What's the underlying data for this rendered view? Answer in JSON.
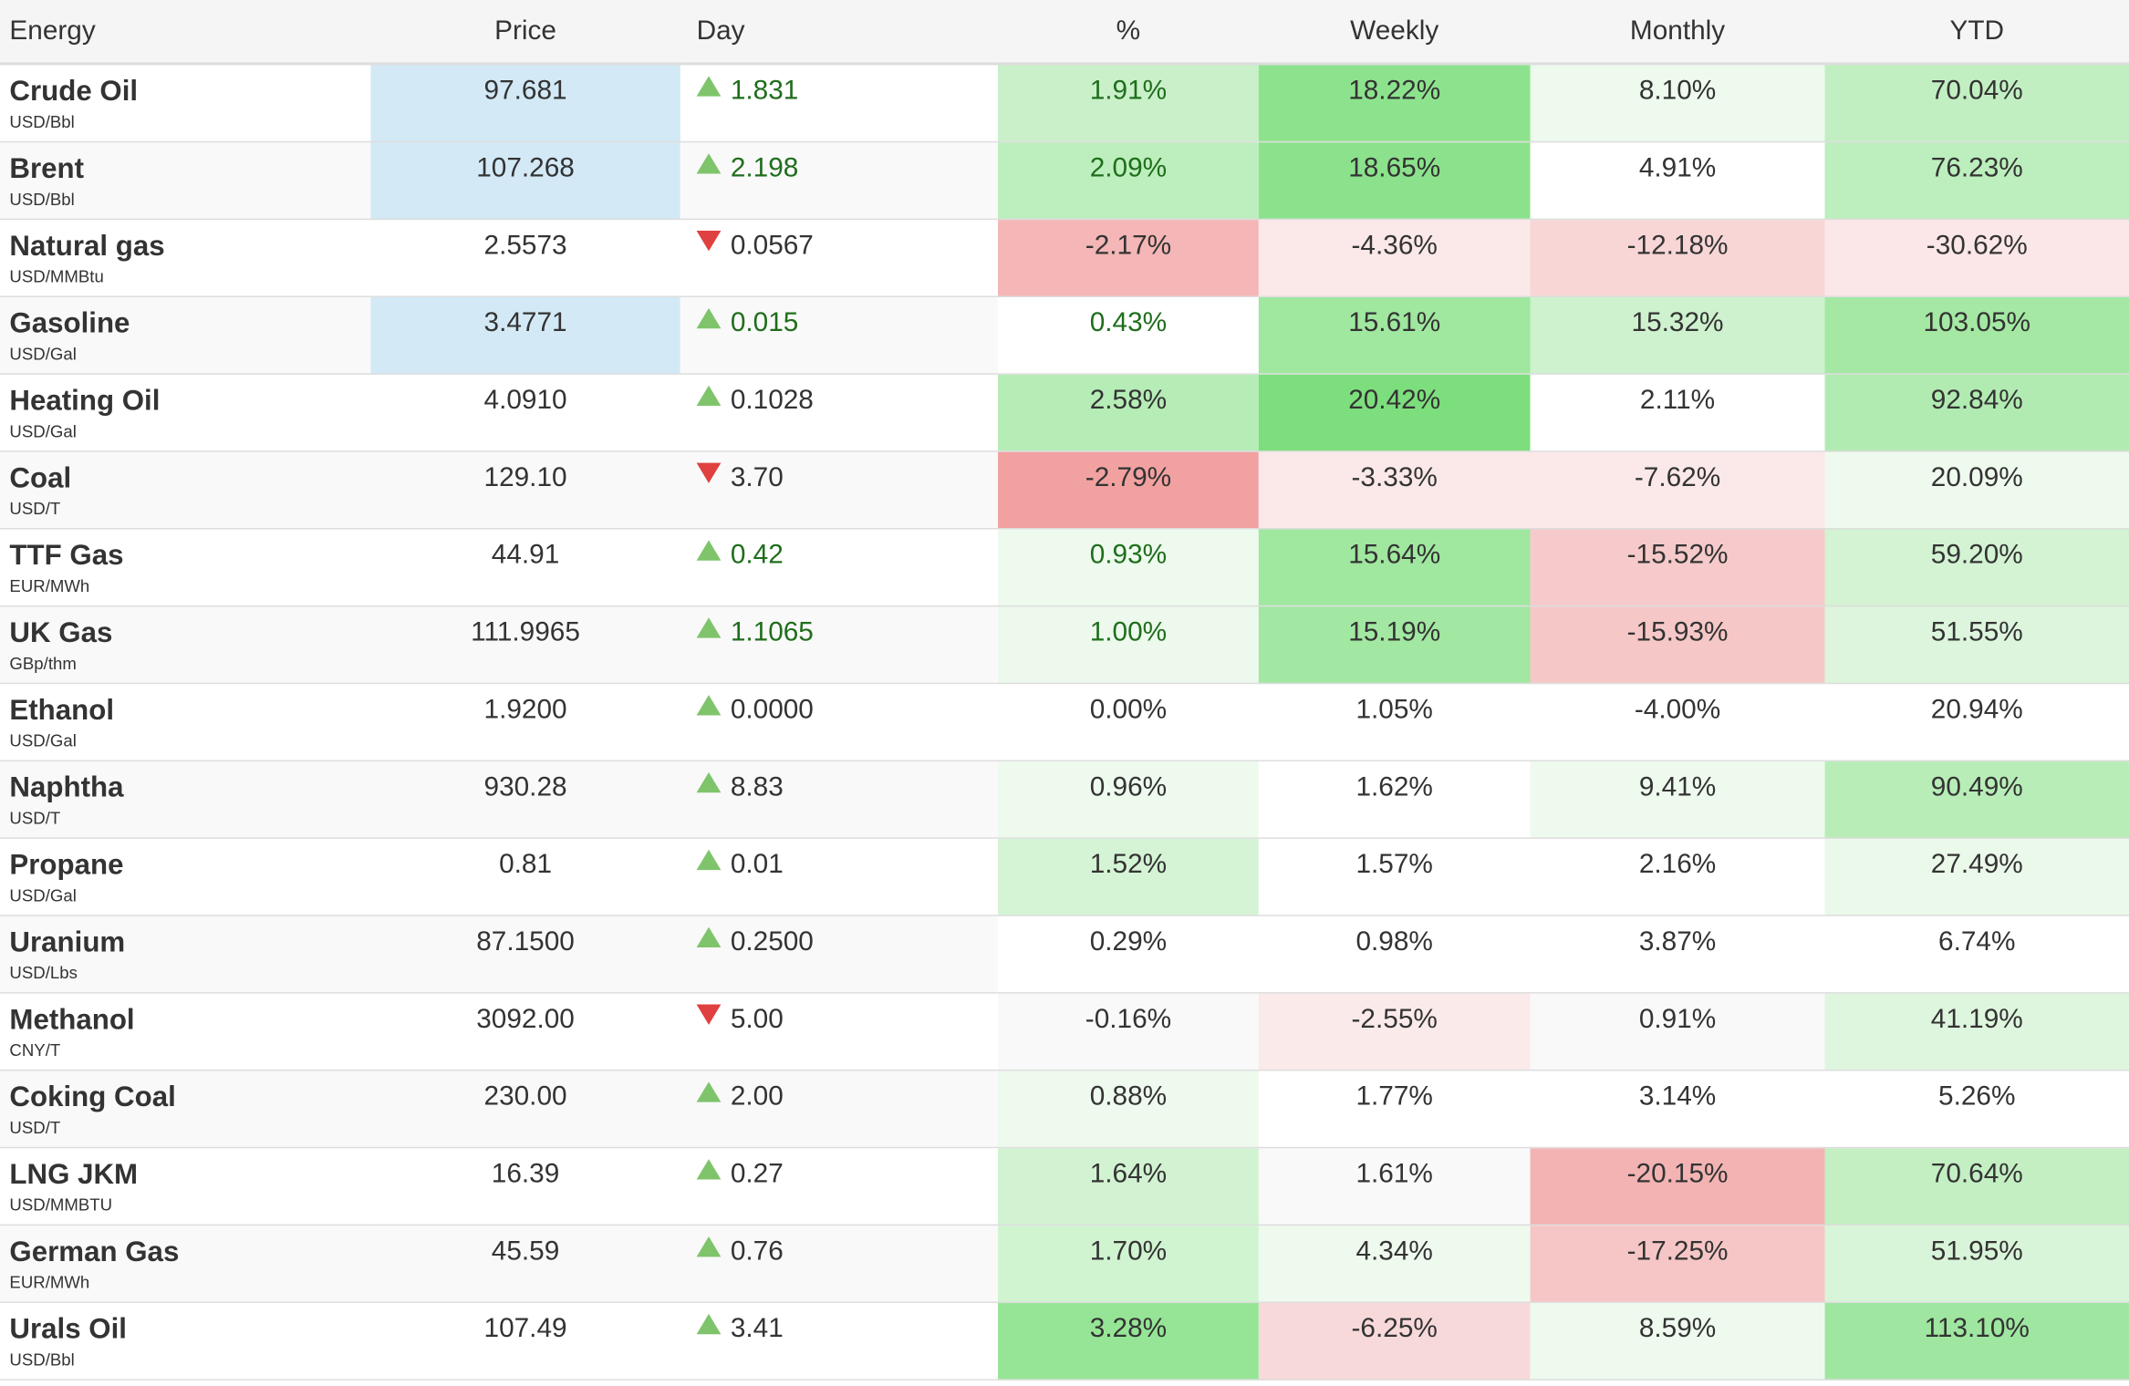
{
  "header": [
    "Energy",
    "Price",
    "Day",
    "%",
    "Weekly",
    "Monthly",
    "YTD"
  ],
  "colors": {
    "highlight": "#d3e9f6",
    "up_arrow": "#7fc46b",
    "down_arrow": "#e0403f",
    "positive_text": "#1f6e1c"
  },
  "rows": [
    {
      "name": "Crude Oil",
      "unit": "USD/Bbl",
      "price": "97.681",
      "day": "1.831",
      "dir": "up",
      "pct": "1.91%",
      "weekly": "18.22%",
      "monthly": "8.10%",
      "ytd": "70.04%",
      "highlight": true,
      "pct_color": "pos",
      "bg": [
        "#c9f0c9",
        "#8de38d",
        "#edfaed",
        "#c2efc2"
      ]
    },
    {
      "name": "Brent",
      "unit": "USD/Bbl",
      "price": "107.268",
      "day": "2.198",
      "dir": "up",
      "pct": "2.09%",
      "weekly": "18.65%",
      "monthly": "4.91%",
      "ytd": "76.23%",
      "highlight": true,
      "pct_color": "pos",
      "bg": [
        "#bdeebd",
        "#8ce28c",
        "#ffffff",
        "#bdeebd"
      ]
    },
    {
      "name": "Natural gas",
      "unit": "USD/MMBtu",
      "price": "2.5573",
      "day": "0.0567",
      "dir": "down",
      "pct": "-2.17%",
      "weekly": "-4.36%",
      "monthly": "-12.18%",
      "ytd": "-30.62%",
      "highlight": false,
      "pct_color": "neg",
      "bg": [
        "#f4b6b6",
        "#fbe8e8",
        "#f8d6d6",
        "#fbe7e7"
      ]
    },
    {
      "name": "Gasoline",
      "unit": "USD/Gal",
      "price": "3.4771",
      "day": "0.015",
      "dir": "up",
      "pct": "0.43%",
      "weekly": "15.61%",
      "monthly": "15.32%",
      "ytd": "103.05%",
      "highlight": true,
      "pct_color": "pos",
      "bg": [
        "#ffffff",
        "#a0e7a0",
        "#cef1ce",
        "#a4e8a4"
      ]
    },
    {
      "name": "Heating Oil",
      "unit": "USD/Gal",
      "price": "4.0910",
      "day": "0.1028",
      "dir": "up",
      "pct": "2.58%",
      "weekly": "20.42%",
      "monthly": "2.11%",
      "ytd": "92.84%",
      "highlight": false,
      "pct_color": "neu",
      "bg": [
        "#b6ecb6",
        "#7dde7d",
        "#ffffff",
        "#b1ebb1"
      ]
    },
    {
      "name": "Coal",
      "unit": "USD/T",
      "price": "129.10",
      "day": "3.70",
      "dir": "down",
      "pct": "-2.79%",
      "weekly": "-3.33%",
      "monthly": "-7.62%",
      "ytd": "20.09%",
      "highlight": false,
      "pct_color": "neg",
      "bg": [
        "#f2a1a1",
        "#fbe9e9",
        "#fbe8e8",
        "#eefaee"
      ]
    },
    {
      "name": "TTF Gas",
      "unit": "EUR/MWh",
      "price": "44.91",
      "day": "0.42",
      "dir": "up",
      "pct": "0.93%",
      "weekly": "15.64%",
      "monthly": "-15.52%",
      "ytd": "59.20%",
      "highlight": false,
      "pct_color": "pos",
      "bg": [
        "#eefaee",
        "#a0e7a0",
        "#f6caca",
        "#d3f3d3"
      ]
    },
    {
      "name": "UK Gas",
      "unit": "GBp/thm",
      "price": "111.9965",
      "day": "1.1065",
      "dir": "up",
      "pct": "1.00%",
      "weekly": "15.19%",
      "monthly": "-15.93%",
      "ytd": "51.55%",
      "highlight": false,
      "pct_color": "pos",
      "bg": [
        "#ecf9ec",
        "#a2e7a2",
        "#f6c7c7",
        "#dcf5dc"
      ]
    },
    {
      "name": "Ethanol",
      "unit": "USD/Gal",
      "price": "1.9200",
      "day": "0.0000",
      "dir": "up",
      "pct": "0.00%",
      "weekly": "1.05%",
      "monthly": "-4.00%",
      "ytd": "20.94%",
      "highlight": false,
      "pct_color": "neu",
      "bg": [
        "#ffffff",
        "#ffffff",
        "#ffffff",
        "#ffffff"
      ]
    },
    {
      "name": "Naphtha",
      "unit": "USD/T",
      "price": "930.28",
      "day": "8.83",
      "dir": "up",
      "pct": "0.96%",
      "weekly": "1.62%",
      "monthly": "9.41%",
      "ytd": "90.49%",
      "highlight": false,
      "pct_color": "neu",
      "bg": [
        "#eefaee",
        "#ffffff",
        "#eefaee",
        "#b8edb8"
      ]
    },
    {
      "name": "Propane",
      "unit": "USD/Gal",
      "price": "0.81",
      "day": "0.01",
      "dir": "up",
      "pct": "1.52%",
      "weekly": "1.57%",
      "monthly": "2.16%",
      "ytd": "27.49%",
      "highlight": false,
      "pct_color": "neu",
      "bg": [
        "#d5f4d5",
        "#ffffff",
        "#ffffff",
        "#ebf9eb"
      ]
    },
    {
      "name": "Uranium",
      "unit": "USD/Lbs",
      "price": "87.1500",
      "day": "0.2500",
      "dir": "up",
      "pct": "0.29%",
      "weekly": "0.98%",
      "monthly": "3.87%",
      "ytd": "6.74%",
      "highlight": false,
      "pct_color": "neu",
      "bg": [
        "#ffffff",
        "#ffffff",
        "#ffffff",
        "#ffffff"
      ]
    },
    {
      "name": "Methanol",
      "unit": "CNY/T",
      "price": "3092.00",
      "day": "5.00",
      "dir": "down",
      "pct": "-0.16%",
      "weekly": "-2.55%",
      "monthly": "0.91%",
      "ytd": "41.19%",
      "highlight": false,
      "pct_color": "neu",
      "bg": [
        "#f9f9f9",
        "#fbeaea",
        "#f9f9f9",
        "#def6de"
      ]
    },
    {
      "name": "Coking Coal",
      "unit": "USD/T",
      "price": "230.00",
      "day": "2.00",
      "dir": "up",
      "pct": "0.88%",
      "weekly": "1.77%",
      "monthly": "3.14%",
      "ytd": "5.26%",
      "highlight": false,
      "pct_color": "neu",
      "bg": [
        "#eefaee",
        "#ffffff",
        "#ffffff",
        "#ffffff"
      ]
    },
    {
      "name": "LNG JKM",
      "unit": "USD/MMBTU",
      "price": "16.39",
      "day": "0.27",
      "dir": "up",
      "pct": "1.64%",
      "weekly": "1.61%",
      "monthly": "-20.15%",
      "ytd": "70.64%",
      "highlight": false,
      "pct_color": "neu",
      "bg": [
        "#d2f3d2",
        "#f9f9f9",
        "#f3b3b3",
        "#c3efc3"
      ]
    },
    {
      "name": "German Gas",
      "unit": "EUR/MWh",
      "price": "45.59",
      "day": "0.76",
      "dir": "up",
      "pct": "1.70%",
      "weekly": "4.34%",
      "monthly": "-17.25%",
      "ytd": "51.95%",
      "highlight": false,
      "pct_color": "neu",
      "bg": [
        "#d0f3d0",
        "#effaef",
        "#f6c6c6",
        "#d9f5d9"
      ]
    },
    {
      "name": "Urals Oil",
      "unit": "USD/Bbl",
      "price": "107.49",
      "day": "3.41",
      "dir": "up",
      "pct": "3.28%",
      "weekly": "-6.25%",
      "monthly": "8.59%",
      "ytd": "113.10%",
      "highlight": false,
      "pct_color": "neu",
      "bg": [
        "#96e596",
        "#f8d9d9",
        "#effaef",
        "#9fe6a0"
      ]
    }
  ]
}
